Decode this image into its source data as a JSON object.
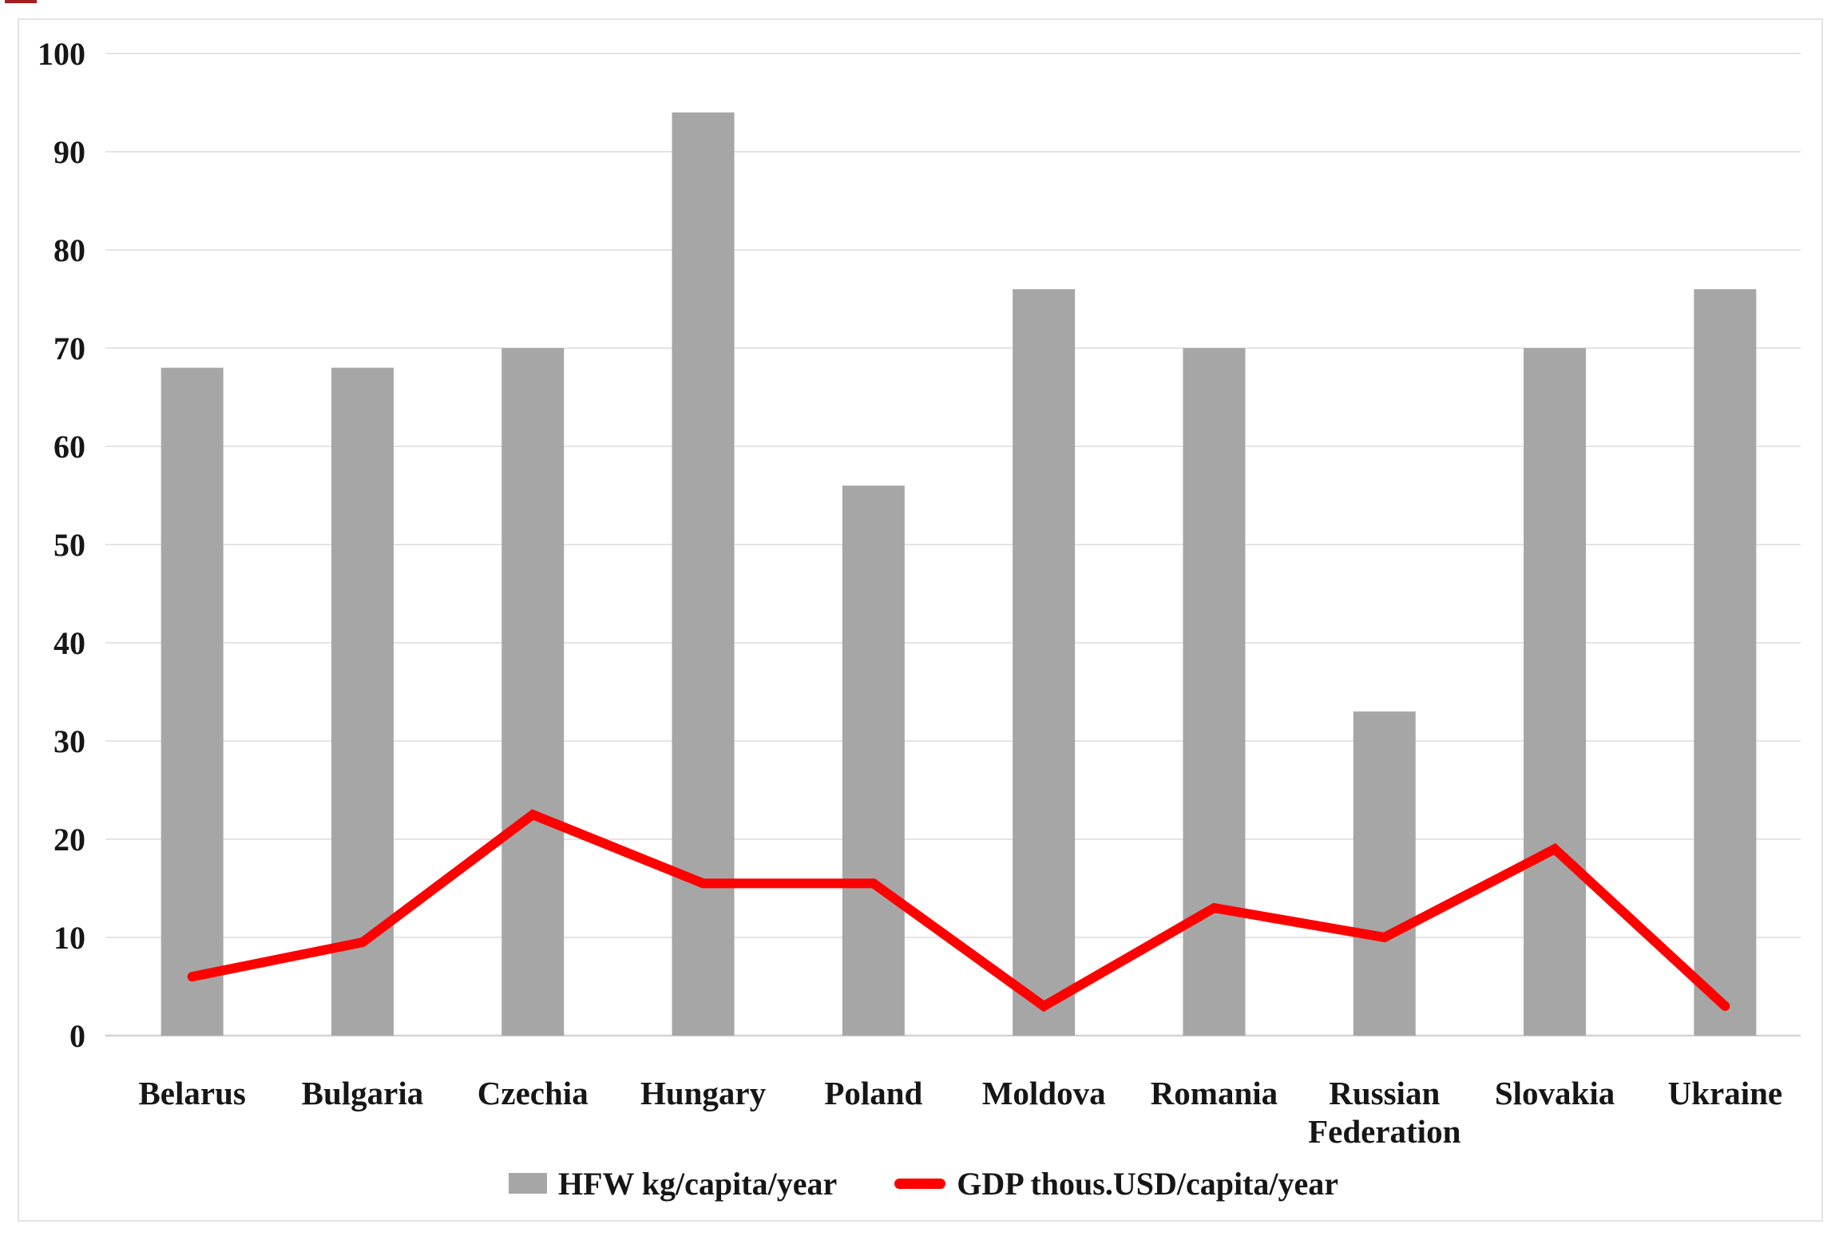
{
  "figure": {
    "background": "#ffffff",
    "frame_color": "#e3e3e3",
    "artifact_color": "#a42020"
  },
  "chart_data": {
    "type": "bar",
    "subtype": "bar-and-line-combo",
    "categories": [
      "Belarus",
      "Bulgaria",
      "Czechia",
      "Hungary",
      "Poland",
      "Moldova",
      "Romania",
      "Russian Federation",
      "Slovakia",
      "Ukraine"
    ],
    "series": [
      {
        "name": "HFW kg/capita/year",
        "type": "bar",
        "color": "#a6a6a6",
        "values": [
          68,
          68,
          70,
          94,
          56,
          76,
          70,
          33,
          70,
          76
        ]
      },
      {
        "name": "GDP thous.USD/capita/year",
        "type": "line",
        "color": "#fe0000",
        "values": [
          6,
          9.5,
          22.5,
          15.5,
          15.5,
          3,
          13,
          10,
          19,
          3
        ]
      }
    ],
    "title": "",
    "xlabel": "",
    "ylabel": "",
    "ylim": [
      0,
      100
    ],
    "yticks": [
      0,
      10,
      20,
      30,
      40,
      50,
      60,
      70,
      80,
      90,
      100
    ],
    "grid": true,
    "gridline_color": "#e4e4e4",
    "axis_line_color": "#d2d2d2",
    "tick_label_color": "#161616",
    "legend_position": "bottom"
  }
}
